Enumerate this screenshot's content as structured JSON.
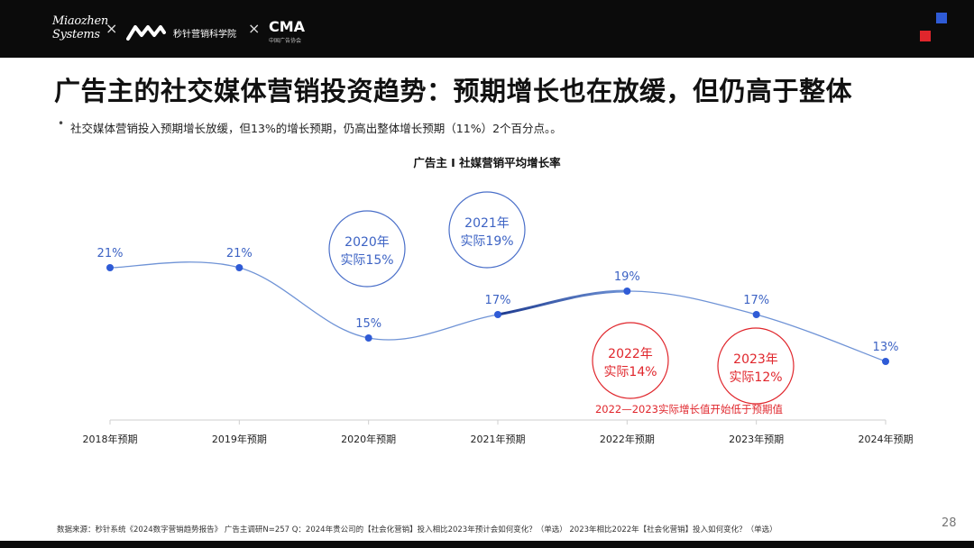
{
  "header": {
    "brand_miaozhen_line1": "Miaozhen",
    "brand_miaozhen_line2": "Systems",
    "separator": "×",
    "academy": "秒针营销科学院",
    "cma": "CMA",
    "cma_sub": "中国广告协会"
  },
  "colors": {
    "accent_blue": "#2f5bd6",
    "accent_red": "#e0262c",
    "line": "#6f93d6",
    "point": "#2f5bd6",
    "highlight_segment": "#1d3a8f",
    "red_text": "#e0262c",
    "blue_text": "#3d63c4"
  },
  "title": "广告主的社交媒体营销投资趋势：预期增长也在放缓，但仍高于整体",
  "bullet": {
    "dot": "•",
    "text": "社交媒体营销投入预期增长放缓，但13%的增长预期，仍高出整体增长预期（11%）2个百分点。。"
  },
  "chart_data": {
    "type": "line",
    "title": "广告主 I 社媒营销平均增长率",
    "categories": [
      "2018年预期",
      "2019年预期",
      "2020年预期",
      "2021年预期",
      "2022年预期",
      "2023年预期",
      "2024年预期"
    ],
    "values": [
      21,
      21,
      15,
      17,
      19,
      17,
      13
    ],
    "value_labels": [
      "21%",
      "21%",
      "15%",
      "17%",
      "19%",
      "17%",
      "13%"
    ],
    "ylim": [
      10,
      25
    ],
    "grid": false,
    "annotations": [
      {
        "category": "2020年预期",
        "line1": "2020年",
        "line2": "实际15%",
        "color": "blue",
        "placement": "above"
      },
      {
        "category": "2021年预期",
        "line1": "2021年",
        "line2": "实际19%",
        "color": "blue",
        "placement": "above"
      },
      {
        "category": "2022年预期",
        "line1": "2022年",
        "line2": "实际14%",
        "color": "red",
        "placement": "below"
      },
      {
        "category": "2023年预期",
        "line1": "2023年",
        "line2": "实际12%",
        "color": "red",
        "placement": "below"
      }
    ],
    "note": "2022—2023实际增长值开始低于预期值"
  },
  "footer": "数据来源：秒针系统《2024数字营销趋势报告》 广告主调研N=257     Q：2024年贵公司的【社会化营销】投入相比2023年预计会如何变化？（单选）  2023年相比2022年【社会化营销】投入如何变化？（单选）",
  "page_number": "28"
}
